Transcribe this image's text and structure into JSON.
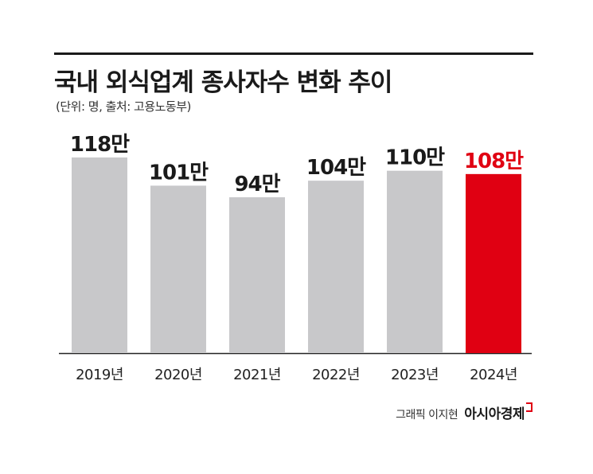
{
  "title": "국내 외식업계 종사자수 변화 추이",
  "subtitle": "(단위: 명, 출처: 고용노동부)",
  "footer": {
    "credit": "그래픽 이지현",
    "brand": "아시아경제"
  },
  "colors": {
    "bar_default": "#c8c8ca",
    "bar_highlight": "#e00012",
    "label_default": "#1a1a1a",
    "label_highlight": "#e00012",
    "axis": "#222222"
  },
  "chart_data": {
    "type": "bar",
    "title": "국내 외식업계 종사자수 변화 추이",
    "xlabel": "",
    "ylabel": "",
    "unit_suffix": "만",
    "categories": [
      "2019년",
      "2020년",
      "2021년",
      "2022년",
      "2023년",
      "2024년"
    ],
    "values": [
      118,
      101,
      94,
      104,
      110,
      108
    ],
    "highlight_index": 5,
    "ylim": [
      0,
      125
    ],
    "grid": false
  }
}
